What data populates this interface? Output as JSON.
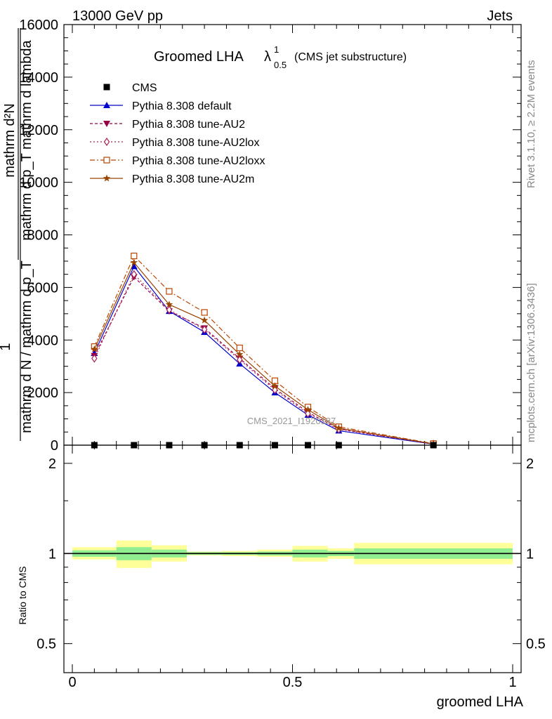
{
  "header": {
    "left": "13000 GeV pp",
    "right": "Jets"
  },
  "side": {
    "rivet": "Rivet 3.1.10, ≥ 2.2M events",
    "mcplots": "mcplots.cern.ch [arXiv:1306.3436]"
  },
  "chart_data": {
    "type": "line",
    "title": "Groomed LHA λ¹₀.₅ (CMS jet substructure)",
    "title_main": "Groomed LHA",
    "title_lambda": "λ",
    "title_sup": "1",
    "title_sub": "0.5",
    "title_note": "(CMS jet substructure)",
    "watermark": "CMS_2021_I1920187",
    "xlabel": "groomed LHA",
    "ylabel_upper": "1 / mathrm d N / mathrm d p_T mathrm d^2N / mathrm d p_T mathrm d lambda",
    "ylabel_upper_parts": {
      "num_outer": "1",
      "den_outer": "mathrm d N / mathrm d p_T",
      "num_inner": "mathrm d²N",
      "den_inner": "mathrm d p_T mathrm d lambda"
    },
    "ylabel_lower": "Ratio to CMS",
    "xlim": [
      0,
      1
    ],
    "ylim_upper": [
      0,
      16000
    ],
    "ylim_lower": [
      0.4,
      2.3
    ],
    "x_ticks": [
      "0",
      "0.5",
      "1"
    ],
    "y_ticks_upper": [
      "0",
      "2000",
      "4000",
      "6000",
      "8000",
      "10000",
      "12000",
      "14000",
      "16000"
    ],
    "y_ticks_lower": [
      "0.5",
      "1",
      "2"
    ],
    "bin_edges": [
      0,
      0.1,
      0.18,
      0.26,
      0.34,
      0.42,
      0.5,
      0.58,
      0.64,
      1.0
    ],
    "x": [
      0.05,
      0.14,
      0.22,
      0.3,
      0.38,
      0.46,
      0.535,
      0.605,
      0.82
    ],
    "series": [
      {
        "name": "CMS",
        "color": "#000000",
        "marker": "square",
        "dash": "",
        "values": [
          0,
          0,
          0,
          0,
          0,
          0,
          0,
          0,
          0
        ]
      },
      {
        "name": "Pythia 8.308 default",
        "color": "#0000cc",
        "marker": "triangle-up",
        "dash": "",
        "values": [
          3500,
          6800,
          5100,
          4300,
          3100,
          2000,
          1150,
          550,
          40
        ]
      },
      {
        "name": "Pythia 8.308 tune-AU2",
        "color": "#990044",
        "marker": "triangle-down",
        "dash": "4,3",
        "values": [
          3400,
          6400,
          5100,
          4450,
          3300,
          2150,
          1250,
          620,
          45
        ]
      },
      {
        "name": "Pythia 8.308 tune-AU2lox",
        "color": "#aa2255",
        "marker": "diamond",
        "dash": "2,3",
        "values": [
          3300,
          6500,
          5150,
          4400,
          3250,
          2100,
          1200,
          600,
          45
        ]
      },
      {
        "name": "Pythia 8.308 tune-AU2loxx",
        "color": "#bb4400",
        "marker": "square-open",
        "dash": "7,3,2,3",
        "values": [
          3750,
          7200,
          5850,
          5050,
          3700,
          2450,
          1450,
          700,
          60
        ]
      },
      {
        "name": "Pythia 8.308 tune-AU2m",
        "color": "#994400",
        "marker": "star",
        "dash": "",
        "values": [
          3650,
          6950,
          5350,
          4750,
          3450,
          2250,
          1350,
          650,
          50
        ]
      }
    ],
    "ratio": {
      "line": 1.0,
      "band_inner": [
        [
          0.975,
          1.025
        ],
        [
          0.95,
          1.05
        ],
        [
          0.97,
          1.03
        ],
        [
          0.99,
          1.01
        ],
        [
          0.99,
          1.01
        ],
        [
          0.985,
          1.015
        ],
        [
          0.97,
          1.03
        ],
        [
          0.98,
          1.02
        ],
        [
          0.96,
          1.04
        ]
      ],
      "band_outer": [
        [
          0.955,
          1.05
        ],
        [
          0.895,
          1.105
        ],
        [
          0.94,
          1.065
        ],
        [
          0.985,
          1.015
        ],
        [
          0.98,
          1.02
        ],
        [
          0.975,
          1.03
        ],
        [
          0.94,
          1.06
        ],
        [
          0.96,
          1.04
        ],
        [
          0.92,
          1.085
        ]
      ],
      "inner_color": "#90ee90",
      "outer_color": "#ffff99"
    }
  }
}
